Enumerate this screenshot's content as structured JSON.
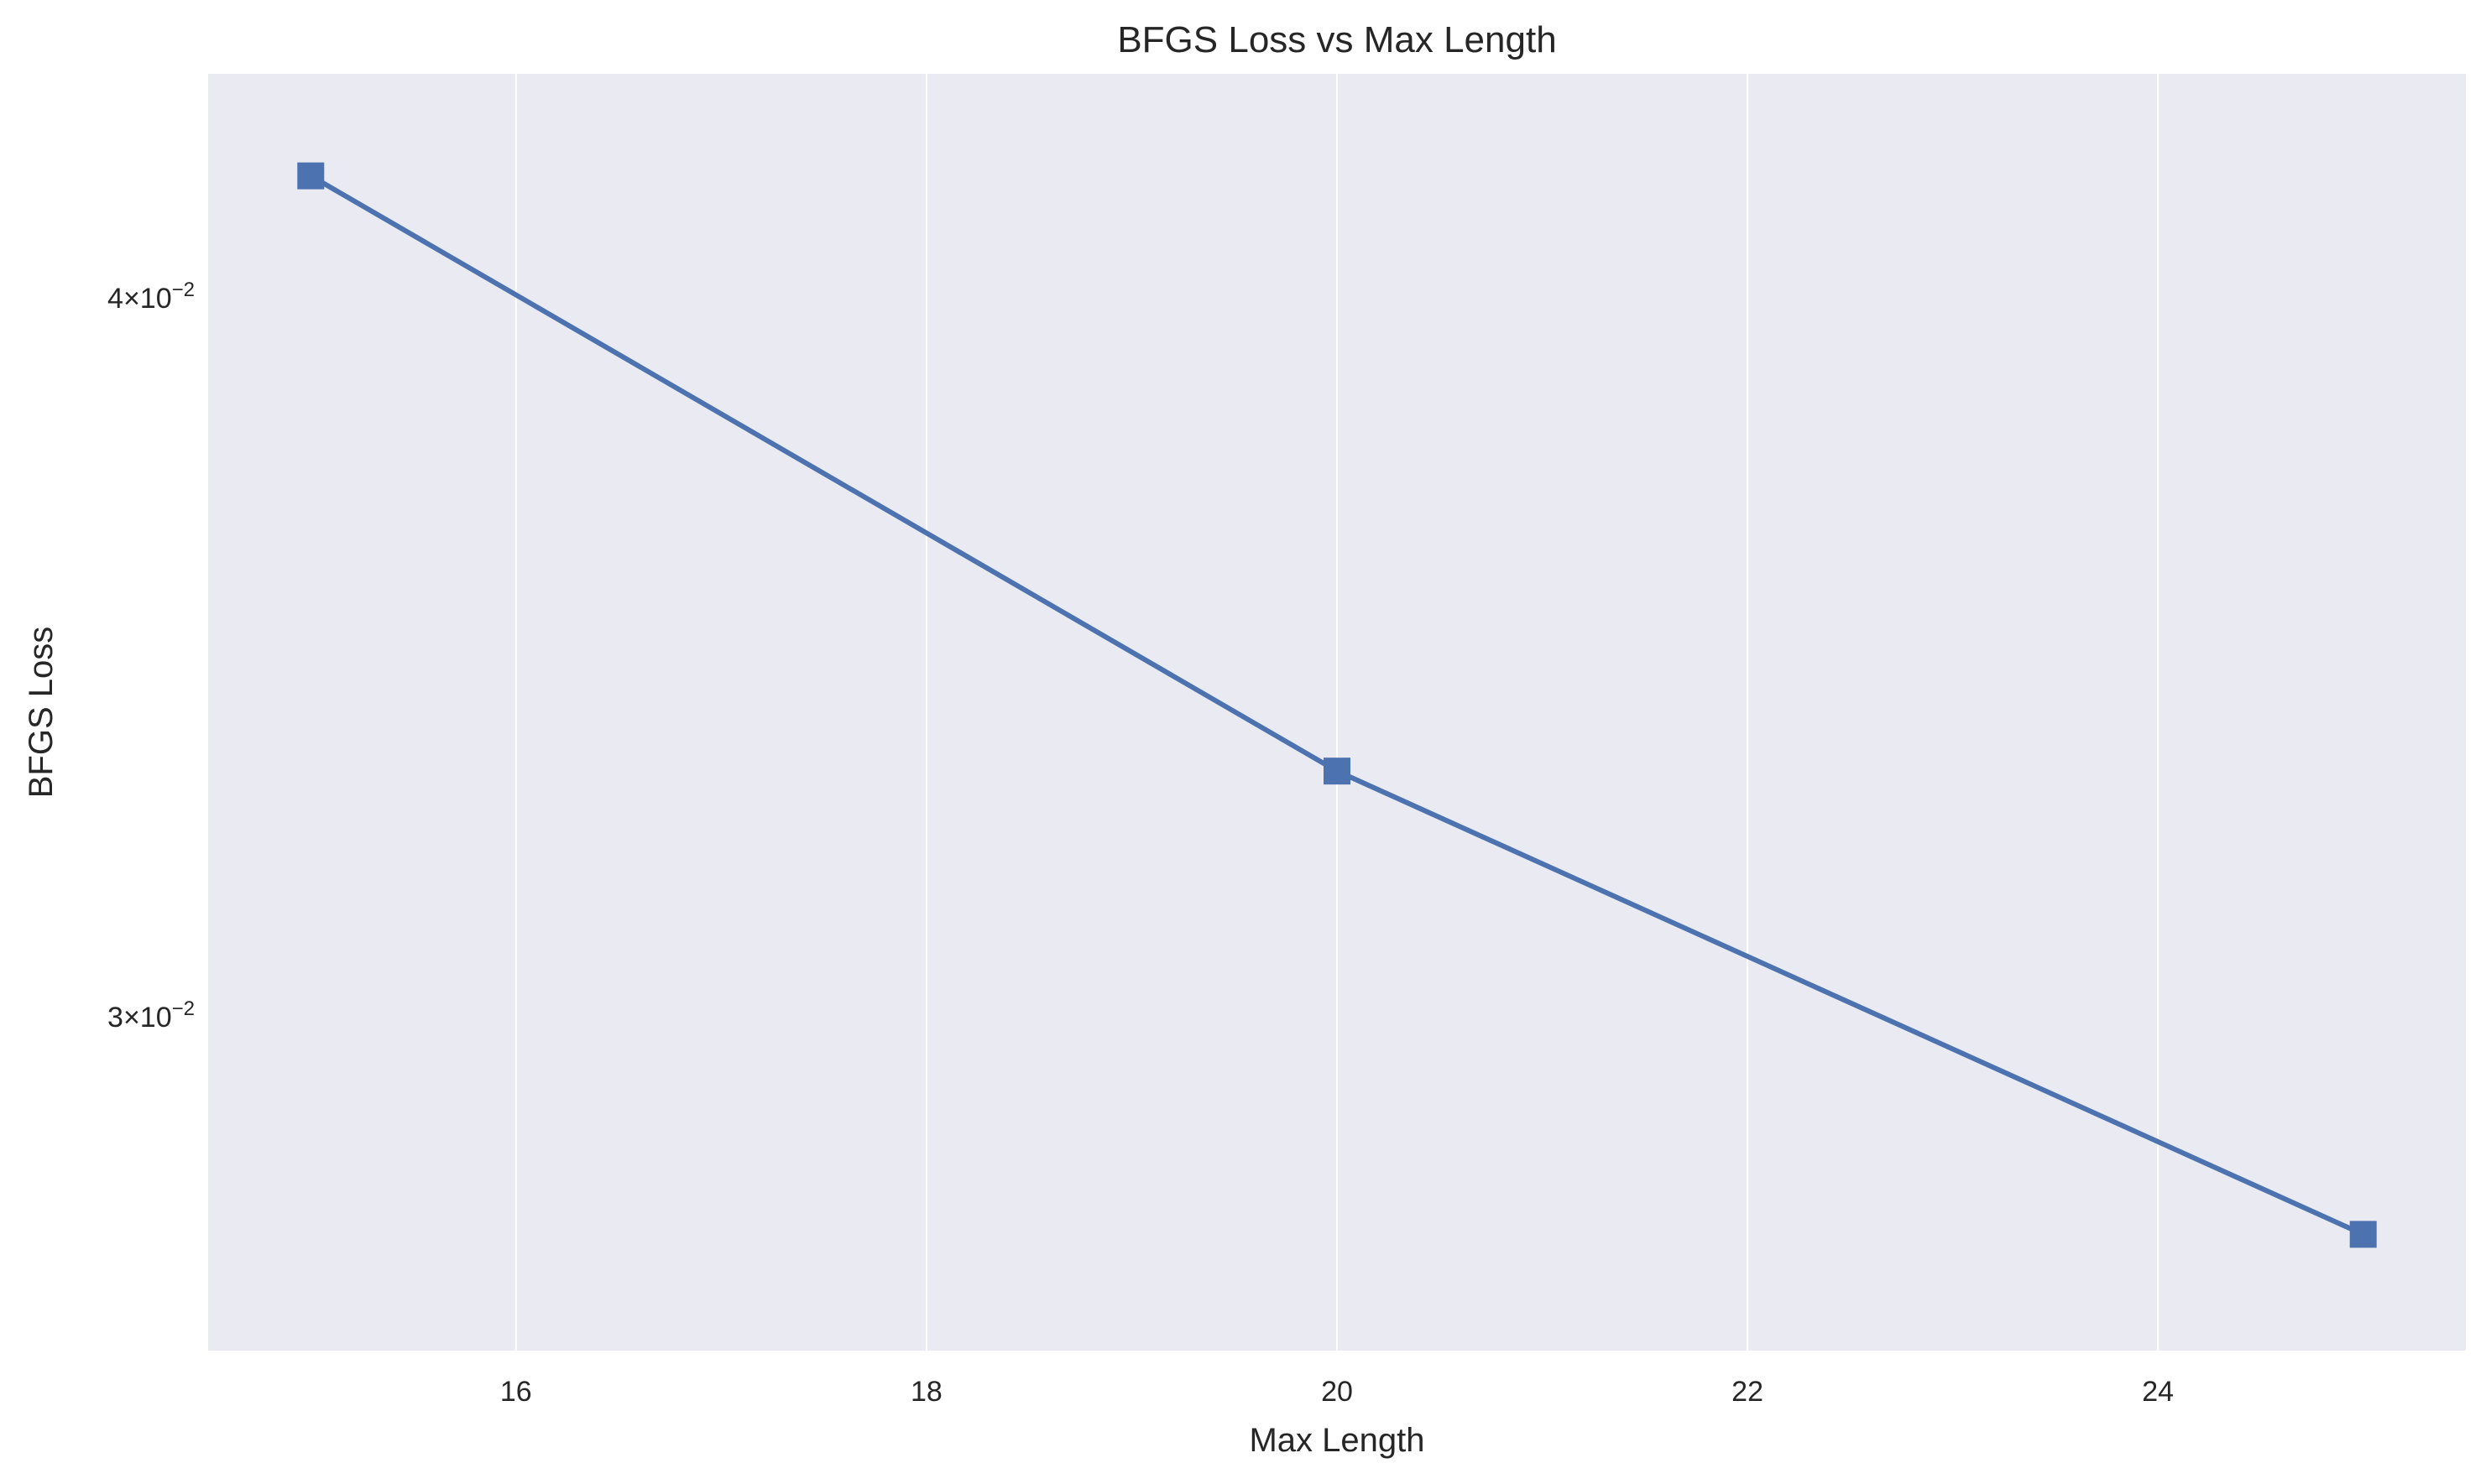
{
  "chart_data": {
    "type": "line",
    "title": "BFGS Loss vs Max Length",
    "xlabel": "Max Length",
    "ylabel": "BFGS Loss",
    "x_scale": "linear",
    "y_scale": "log",
    "xlim": [
      14.5,
      25.5
    ],
    "ylim": [
      0.02625,
      0.04375
    ],
    "grid": "x-major",
    "legend": "none",
    "x_ticks": [
      16,
      18,
      20,
      22,
      24
    ],
    "x_tick_labels": [
      "16",
      "18",
      "20",
      "22",
      "24"
    ],
    "y_ticks": [
      0.03,
      0.04
    ],
    "y_tick_labels": [
      {
        "mantissa": "3",
        "base": "×10",
        "exponent": "−2"
      },
      {
        "mantissa": "4",
        "base": "×10",
        "exponent": "−2"
      }
    ],
    "series": [
      {
        "x": [
          15,
          20,
          25
        ],
        "y": [
          0.042,
          0.0331,
          0.0275
        ],
        "marker": "square",
        "color": "#4c72b0"
      }
    ],
    "colors": {
      "plot_background": "#eaeaf2",
      "grid": "#ffffff",
      "line": "#4c72b0",
      "text": "#262626"
    }
  }
}
